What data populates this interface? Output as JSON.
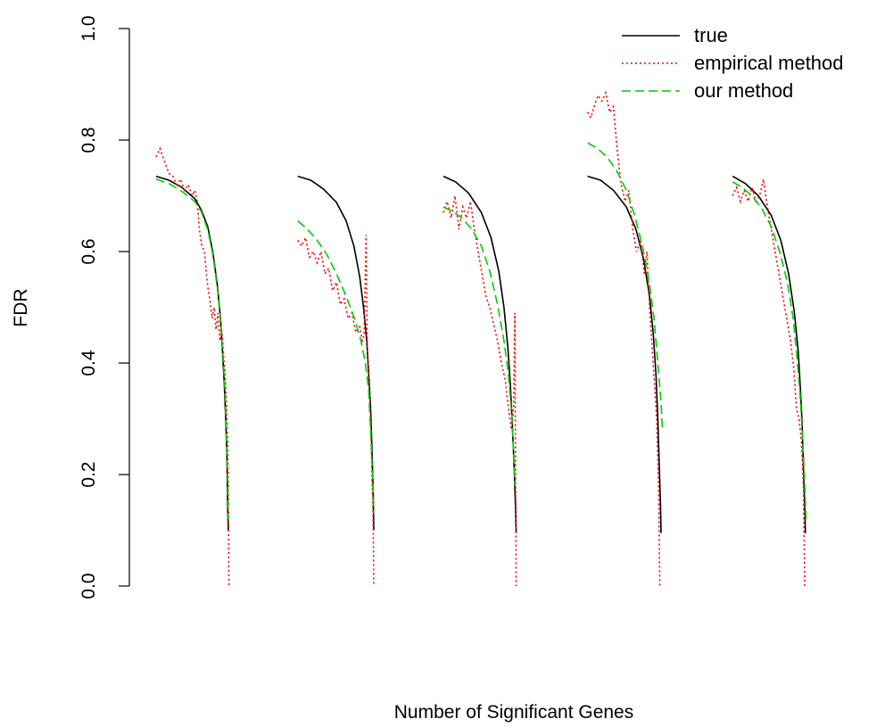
{
  "chart_data": {
    "type": "line",
    "title": "",
    "xlabel": "Number of Significant Genes",
    "ylabel": "FDR",
    "xlim": [
      0,
      1
    ],
    "ylim": [
      0,
      1
    ],
    "y_ticks": [
      "0.0",
      "0.2",
      "0.4",
      "0.6",
      "0.8",
      "1.0"
    ],
    "x_ticks_shown": false,
    "grid": false,
    "legend_position": "top-right",
    "series_style": [
      {
        "name": "true",
        "color": "#000000",
        "dash": "solid"
      },
      {
        "name": "empirical method",
        "color": "#ff0000",
        "dash": "dotted"
      },
      {
        "name": "our method",
        "color": "#00cc00",
        "dash": "dashed"
      }
    ],
    "panels": [
      {
        "true": [
          [
            0.0,
            0.735
          ],
          [
            0.02,
            0.728
          ],
          [
            0.04,
            0.715
          ],
          [
            0.06,
            0.695
          ],
          [
            0.07,
            0.675
          ],
          [
            0.08,
            0.645
          ],
          [
            0.088,
            0.6
          ],
          [
            0.095,
            0.54
          ],
          [
            0.1,
            0.48
          ],
          [
            0.103,
            0.42
          ],
          [
            0.106,
            0.36
          ],
          [
            0.108,
            0.3
          ],
          [
            0.11,
            0.23
          ],
          [
            0.111,
            0.15
          ],
          [
            0.112,
            0.1
          ]
        ],
        "empirical method": [
          [
            0.0,
            0.77
          ],
          [
            0.006,
            0.785
          ],
          [
            0.012,
            0.765
          ],
          [
            0.02,
            0.74
          ],
          [
            0.026,
            0.735
          ],
          [
            0.032,
            0.72
          ],
          [
            0.038,
            0.73
          ],
          [
            0.044,
            0.71
          ],
          [
            0.05,
            0.72
          ],
          [
            0.056,
            0.7
          ],
          [
            0.06,
            0.71
          ],
          [
            0.064,
            0.69
          ],
          [
            0.067,
            0.64
          ],
          [
            0.071,
            0.61
          ],
          [
            0.075,
            0.6
          ],
          [
            0.078,
            0.56
          ],
          [
            0.081,
            0.53
          ],
          [
            0.084,
            0.51
          ],
          [
            0.087,
            0.48
          ],
          [
            0.09,
            0.5
          ],
          [
            0.093,
            0.46
          ],
          [
            0.096,
            0.49
          ],
          [
            0.099,
            0.44
          ],
          [
            0.102,
            0.46
          ],
          [
            0.105,
            0.41
          ],
          [
            0.107,
            0.38
          ],
          [
            0.109,
            0.33
          ],
          [
            0.111,
            0.26
          ],
          [
            0.112,
            0.18
          ],
          [
            0.113,
            0.0
          ]
        ],
        "our method": [
          [
            0.0,
            0.73
          ],
          [
            0.02,
            0.722
          ],
          [
            0.04,
            0.708
          ],
          [
            0.06,
            0.69
          ],
          [
            0.07,
            0.672
          ],
          [
            0.08,
            0.64
          ],
          [
            0.088,
            0.595
          ],
          [
            0.095,
            0.535
          ],
          [
            0.1,
            0.475
          ],
          [
            0.104,
            0.41
          ],
          [
            0.107,
            0.35
          ],
          [
            0.109,
            0.28
          ],
          [
            0.111,
            0.2
          ],
          [
            0.112,
            0.12
          ]
        ]
      },
      {
        "true": [
          [
            0.22,
            0.735
          ],
          [
            0.24,
            0.728
          ],
          [
            0.26,
            0.712
          ],
          [
            0.28,
            0.688
          ],
          [
            0.295,
            0.655
          ],
          [
            0.307,
            0.61
          ],
          [
            0.316,
            0.555
          ],
          [
            0.322,
            0.5
          ],
          [
            0.327,
            0.44
          ],
          [
            0.33,
            0.38
          ],
          [
            0.333,
            0.32
          ],
          [
            0.335,
            0.25
          ],
          [
            0.337,
            0.17
          ],
          [
            0.338,
            0.1
          ]
        ],
        "empirical method": [
          [
            0.22,
            0.62
          ],
          [
            0.226,
            0.61
          ],
          [
            0.232,
            0.625
          ],
          [
            0.238,
            0.59
          ],
          [
            0.244,
            0.6
          ],
          [
            0.25,
            0.58
          ],
          [
            0.256,
            0.6
          ],
          [
            0.262,
            0.56
          ],
          [
            0.268,
            0.57
          ],
          [
            0.274,
            0.53
          ],
          [
            0.28,
            0.545
          ],
          [
            0.286,
            0.505
          ],
          [
            0.292,
            0.515
          ],
          [
            0.298,
            0.48
          ],
          [
            0.304,
            0.49
          ],
          [
            0.31,
            0.455
          ],
          [
            0.316,
            0.465
          ],
          [
            0.32,
            0.44
          ],
          [
            0.323,
            0.45
          ],
          [
            0.326,
            0.63
          ],
          [
            0.328,
            0.42
          ],
          [
            0.331,
            0.36
          ],
          [
            0.333,
            0.3
          ],
          [
            0.335,
            0.2
          ],
          [
            0.337,
            0.12
          ],
          [
            0.338,
            0.0
          ]
        ],
        "our method": [
          [
            0.22,
            0.655
          ],
          [
            0.235,
            0.64
          ],
          [
            0.25,
            0.62
          ],
          [
            0.265,
            0.595
          ],
          [
            0.28,
            0.56
          ],
          [
            0.295,
            0.52
          ],
          [
            0.308,
            0.48
          ],
          [
            0.318,
            0.44
          ],
          [
            0.325,
            0.4
          ],
          [
            0.33,
            0.35
          ],
          [
            0.333,
            0.28
          ],
          [
            0.336,
            0.2
          ],
          [
            0.338,
            0.13
          ]
        ]
      },
      {
        "true": [
          [
            0.446,
            0.735
          ],
          [
            0.465,
            0.725
          ],
          [
            0.485,
            0.705
          ],
          [
            0.505,
            0.67
          ],
          [
            0.52,
            0.625
          ],
          [
            0.532,
            0.565
          ],
          [
            0.54,
            0.5
          ],
          [
            0.546,
            0.43
          ],
          [
            0.55,
            0.36
          ],
          [
            0.553,
            0.29
          ],
          [
            0.556,
            0.21
          ],
          [
            0.558,
            0.14
          ],
          [
            0.559,
            0.095
          ]
        ],
        "empirical method": [
          [
            0.446,
            0.67
          ],
          [
            0.452,
            0.69
          ],
          [
            0.458,
            0.66
          ],
          [
            0.464,
            0.7
          ],
          [
            0.47,
            0.64
          ],
          [
            0.476,
            0.68
          ],
          [
            0.482,
            0.66
          ],
          [
            0.488,
            0.69
          ],
          [
            0.494,
            0.64
          ],
          [
            0.5,
            0.6
          ],
          [
            0.506,
            0.56
          ],
          [
            0.512,
            0.52
          ],
          [
            0.518,
            0.5
          ],
          [
            0.524,
            0.47
          ],
          [
            0.53,
            0.44
          ],
          [
            0.536,
            0.4
          ],
          [
            0.542,
            0.37
          ],
          [
            0.548,
            0.31
          ],
          [
            0.552,
            0.28
          ],
          [
            0.555,
            0.32
          ],
          [
            0.557,
            0.49
          ],
          [
            0.558,
            0.2
          ],
          [
            0.559,
            0.0
          ]
        ],
        "our method": [
          [
            0.446,
            0.68
          ],
          [
            0.46,
            0.672
          ],
          [
            0.475,
            0.66
          ],
          [
            0.49,
            0.64
          ],
          [
            0.505,
            0.61
          ],
          [
            0.518,
            0.565
          ],
          [
            0.53,
            0.505
          ],
          [
            0.54,
            0.44
          ],
          [
            0.547,
            0.38
          ],
          [
            0.552,
            0.31
          ],
          [
            0.555,
            0.24
          ],
          [
            0.557,
            0.18
          ]
        ]
      },
      {
        "true": [
          [
            0.67,
            0.735
          ],
          [
            0.69,
            0.728
          ],
          [
            0.71,
            0.71
          ],
          [
            0.73,
            0.68
          ],
          [
            0.745,
            0.64
          ],
          [
            0.757,
            0.585
          ],
          [
            0.766,
            0.52
          ],
          [
            0.772,
            0.45
          ],
          [
            0.776,
            0.38
          ],
          [
            0.779,
            0.3
          ],
          [
            0.781,
            0.22
          ],
          [
            0.783,
            0.15
          ],
          [
            0.784,
            0.095
          ]
        ],
        "empirical method": [
          [
            0.67,
            0.85
          ],
          [
            0.675,
            0.84
          ],
          [
            0.68,
            0.86
          ],
          [
            0.686,
            0.88
          ],
          [
            0.692,
            0.87
          ],
          [
            0.698,
            0.885
          ],
          [
            0.704,
            0.85
          ],
          [
            0.71,
            0.86
          ],
          [
            0.716,
            0.78
          ],
          [
            0.722,
            0.72
          ],
          [
            0.728,
            0.69
          ],
          [
            0.734,
            0.71
          ],
          [
            0.74,
            0.64
          ],
          [
            0.746,
            0.6
          ],
          [
            0.752,
            0.62
          ],
          [
            0.758,
            0.56
          ],
          [
            0.762,
            0.6
          ],
          [
            0.766,
            0.5
          ],
          [
            0.77,
            0.43
          ],
          [
            0.774,
            0.36
          ],
          [
            0.777,
            0.3
          ],
          [
            0.78,
            0.18
          ],
          [
            0.782,
            0.0
          ]
        ],
        "our method": [
          [
            0.67,
            0.795
          ],
          [
            0.685,
            0.785
          ],
          [
            0.7,
            0.77
          ],
          [
            0.715,
            0.745
          ],
          [
            0.73,
            0.71
          ],
          [
            0.743,
            0.665
          ],
          [
            0.755,
            0.61
          ],
          [
            0.765,
            0.55
          ],
          [
            0.773,
            0.48
          ],
          [
            0.779,
            0.4
          ],
          [
            0.784,
            0.33
          ],
          [
            0.786,
            0.28
          ]
        ]
      },
      {
        "true": [
          [
            0.895,
            0.735
          ],
          [
            0.915,
            0.722
          ],
          [
            0.935,
            0.7
          ],
          [
            0.955,
            0.665
          ],
          [
            0.97,
            0.62
          ],
          [
            0.982,
            0.56
          ],
          [
            0.991,
            0.49
          ],
          [
            0.997,
            0.42
          ],
          [
            1.0,
            0.36
          ],
          [
            1.003,
            0.29
          ],
          [
            1.005,
            0.21
          ],
          [
            1.007,
            0.14
          ],
          [
            1.008,
            0.095
          ]
        ],
        "empirical method": [
          [
            0.895,
            0.7
          ],
          [
            0.901,
            0.715
          ],
          [
            0.907,
            0.69
          ],
          [
            0.913,
            0.71
          ],
          [
            0.919,
            0.69
          ],
          [
            0.925,
            0.715
          ],
          [
            0.931,
            0.69
          ],
          [
            0.937,
            0.7
          ],
          [
            0.943,
            0.73
          ],
          [
            0.949,
            0.68
          ],
          [
            0.955,
            0.64
          ],
          [
            0.961,
            0.6
          ],
          [
            0.967,
            0.56
          ],
          [
            0.973,
            0.52
          ],
          [
            0.979,
            0.48
          ],
          [
            0.985,
            0.44
          ],
          [
            0.99,
            0.39
          ],
          [
            0.994,
            0.32
          ],
          [
            0.998,
            0.3
          ],
          [
            1.002,
            0.26
          ],
          [
            1.005,
            0.18
          ],
          [
            1.007,
            0.0
          ]
        ],
        "our method": [
          [
            0.895,
            0.725
          ],
          [
            0.91,
            0.715
          ],
          [
            0.925,
            0.7
          ],
          [
            0.94,
            0.678
          ],
          [
            0.955,
            0.645
          ],
          [
            0.968,
            0.6
          ],
          [
            0.98,
            0.545
          ],
          [
            0.989,
            0.48
          ],
          [
            0.995,
            0.41
          ],
          [
            1.0,
            0.34
          ],
          [
            1.004,
            0.26
          ],
          [
            1.007,
            0.18
          ],
          [
            1.009,
            0.12
          ]
        ]
      }
    ]
  }
}
